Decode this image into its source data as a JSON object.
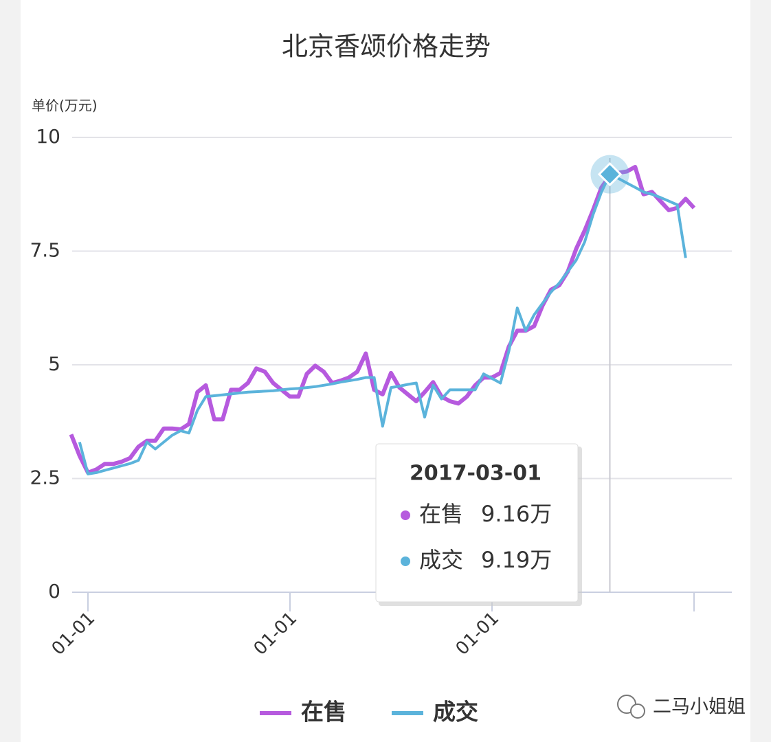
{
  "chart_data": {
    "type": "line",
    "title": "北京香颂价格走势",
    "y_label": "单价(万元)",
    "categories": [
      null,
      null,
      "01-01",
      null,
      null,
      null,
      null,
      null,
      null,
      null,
      null,
      null,
      null,
      null,
      null,
      null,
      null,
      null,
      null,
      null,
      null,
      null,
      null,
      null,
      null,
      null,
      "01-01",
      null,
      null,
      null,
      null,
      null,
      null,
      null,
      null,
      null,
      null,
      null,
      null,
      null,
      null,
      null,
      null,
      null,
      null,
      null,
      null,
      null,
      null,
      null,
      "01-01",
      null,
      null,
      null,
      null,
      null,
      null,
      null,
      null,
      null,
      null,
      null,
      null,
      null,
      null,
      null,
      null,
      null,
      null,
      null,
      null,
      null,
      null,
      null,
      null
    ],
    "xticks": [
      2,
      26,
      50,
      74
    ],
    "ylim": [
      0,
      10
    ],
    "yticks": [
      0,
      2.5,
      5,
      7.5,
      10
    ],
    "grid": true,
    "series": [
      {
        "name": "在售",
        "color": "#b65ade",
        "values": [
          3.47,
          3.0,
          2.63,
          2.7,
          2.82,
          2.82,
          2.87,
          2.95,
          3.2,
          3.33,
          3.33,
          3.6,
          3.6,
          3.58,
          3.7,
          4.4,
          4.55,
          3.8,
          3.8,
          4.45,
          4.45,
          4.6,
          4.92,
          4.85,
          4.6,
          4.45,
          4.3,
          4.3,
          4.8,
          4.98,
          4.85,
          4.6,
          4.65,
          4.72,
          4.85,
          5.25,
          4.45,
          4.35,
          4.82,
          4.5,
          4.35,
          4.2,
          4.4,
          4.62,
          4.3,
          4.2,
          4.15,
          4.3,
          4.55,
          4.72,
          4.72,
          4.82,
          5.4,
          5.75,
          5.75,
          5.85,
          6.3,
          6.65,
          6.75,
          7.05,
          7.55,
          7.95,
          8.4,
          8.9,
          9.16,
          9.22,
          9.25,
          9.35,
          8.75,
          8.8,
          8.6,
          8.4,
          8.45,
          8.65,
          8.45
        ]
      },
      {
        "name": "成交",
        "color": "#5bb3db",
        "values": [
          null,
          3.3,
          2.6,
          2.63,
          2.68,
          2.73,
          2.78,
          2.83,
          2.9,
          3.3,
          3.15,
          3.3,
          3.45,
          3.55,
          3.5,
          4.0,
          4.3,
          4.32,
          4.34,
          4.36,
          4.38,
          4.4,
          4.41,
          4.42,
          4.43,
          4.45,
          4.47,
          4.48,
          4.5,
          4.52,
          4.55,
          4.58,
          4.62,
          4.65,
          4.68,
          4.72,
          4.72,
          3.65,
          4.5,
          4.53,
          4.57,
          4.6,
          3.85,
          4.55,
          4.25,
          4.45,
          4.45,
          4.45,
          4.45,
          4.8,
          4.7,
          4.6,
          5.3,
          6.25,
          5.75,
          6.1,
          6.35,
          6.6,
          6.8,
          7.05,
          7.3,
          7.7,
          8.3,
          8.8,
          9.19,
          9.1,
          9.0,
          8.9,
          8.8,
          8.75,
          8.68,
          8.6,
          8.52,
          7.35,
          null
        ]
      }
    ],
    "tooltip": {
      "title": "2017-03-01",
      "values": [
        9.16,
        9.19
      ],
      "value_labels": [
        "9.16万",
        "9.19万"
      ]
    },
    "watermark": "二马小姐姐"
  }
}
